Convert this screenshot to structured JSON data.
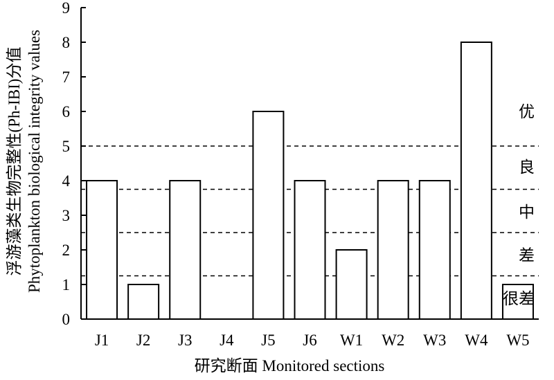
{
  "chart_data": {
    "type": "bar",
    "categories": [
      "J1",
      "J2",
      "J3",
      "J4",
      "J5",
      "J6",
      "W1",
      "W2",
      "W3",
      "W4",
      "W5"
    ],
    "values": [
      4,
      1,
      4,
      0,
      6,
      4,
      2,
      4,
      4,
      8,
      1
    ],
    "ylim": [
      0,
      9
    ],
    "yticks": [
      0,
      1,
      2,
      3,
      4,
      5,
      6,
      7,
      8,
      9
    ],
    "ylabel_line1": "浮游藻类生物完整性(Ph-IBI)分值",
    "ylabel_line2": "Phytoplankton biological integrity values",
    "xlabel": "研究断面 Monitored sections",
    "thresholds": [
      1.25,
      2.5,
      3.75,
      5
    ],
    "grades": [
      {
        "label": "优",
        "y": 6.0
      },
      {
        "label": "良",
        "y": 4.4
      },
      {
        "label": "中",
        "y": 3.1
      },
      {
        "label": "差",
        "y": 1.85
      },
      {
        "label": "很差",
        "y": 0.6
      }
    ],
    "bar_fill": "#ffffff",
    "bar_stroke": "#000000",
    "grid": false
  }
}
